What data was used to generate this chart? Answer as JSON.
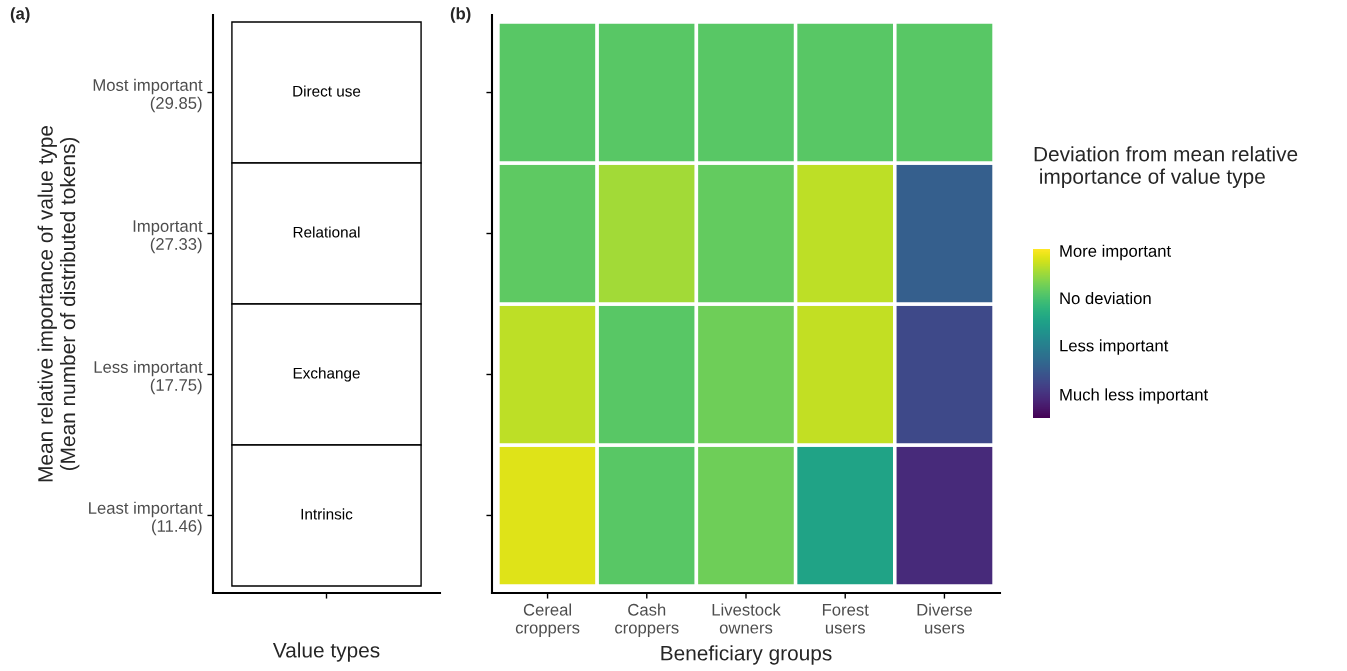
{
  "chart_data": [
    {
      "type": "heatmap",
      "title": "(a)",
      "xlabel": "Value types",
      "ylabel": "Mean relative importance of value type\n(Mean number of distributed tokens)",
      "categories": [
        null
      ],
      "y_categories": [
        "Most important\n(29.85)",
        "Important\n(27.33)",
        "Less important\n(17.75)",
        "Least important\n(11.46)"
      ],
      "cells": [
        [
          null
        ],
        [
          null
        ],
        [
          null
        ],
        [
          null
        ]
      ],
      "cell_labels": [
        [
          "Direct use"
        ],
        [
          "Relational"
        ],
        [
          "Exchange"
        ],
        [
          "Intrinsic"
        ]
      ]
    },
    {
      "type": "heatmap",
      "title": "(b)",
      "xlabel": "Beneficiary groups",
      "clabel": "Deviation from mean relative\n importance of value type",
      "categories": [
        "Cereal\ncroppers",
        "Cash\ncroppers",
        "Livestock\nowners",
        "Forest\nusers",
        "Diverse\nusers"
      ],
      "y_categories": [
        null,
        null,
        null,
        null
      ],
      "cells": [
        [
          0.74,
          0.74,
          0.74,
          0.74,
          0.74
        ],
        [
          0.75,
          0.86,
          0.76,
          0.9,
          0.3
        ],
        [
          0.9,
          0.74,
          0.78,
          0.91,
          0.22
        ],
        [
          0.95,
          0.74,
          0.78,
          0.58,
          0.12
        ]
      ],
      "clim": [
        0,
        1
      ],
      "cticks": [
        {
          "value": 0.99,
          "label": "More important"
        },
        {
          "value": 0.71,
          "label": "No deviation"
        },
        {
          "value": 0.43,
          "label": "Less important"
        },
        {
          "value": 0.14,
          "label": "Much less important"
        }
      ],
      "tick_labels": "x"
    }
  ]
}
